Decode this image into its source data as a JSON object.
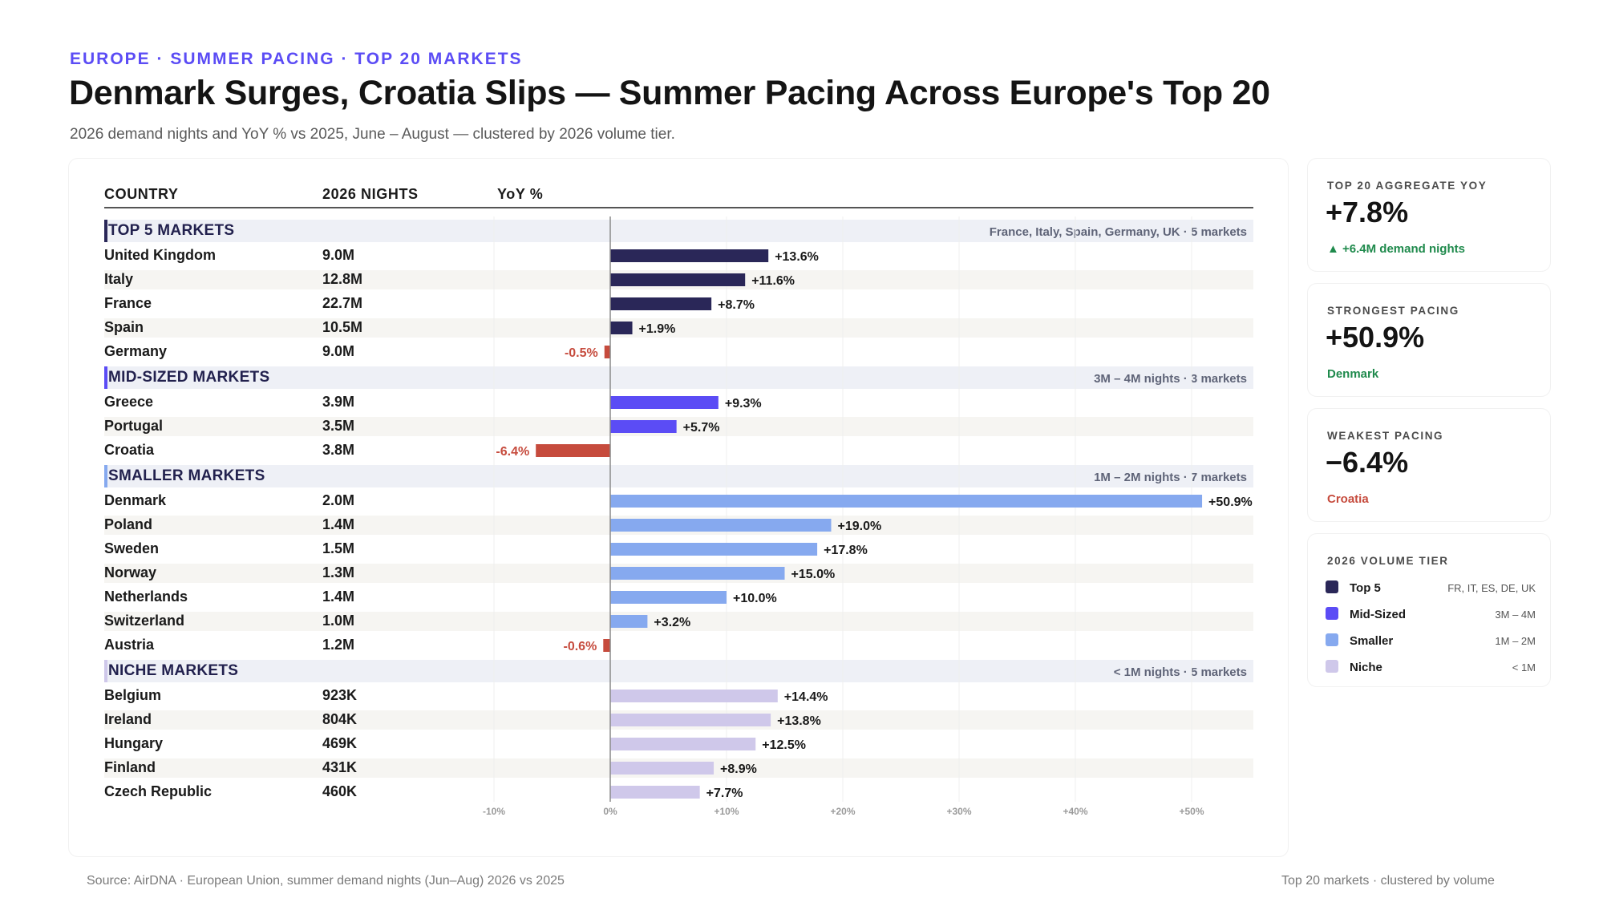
{
  "header": {
    "eyebrow": "EUROPE · SUMMER PACING · TOP 20 MARKETS",
    "title": "Denmark Surges, Croatia Slips — Summer Pacing Across Europe's Top 20",
    "subtitle": "2026 demand nights and YoY % vs 2025, June – August — clustered by 2026 volume tier."
  },
  "table": {
    "columns": [
      "COUNTRY",
      "2026 NIGHTS",
      "YoY %"
    ]
  },
  "colors": {
    "top5": "#2a2758",
    "mid": "#5b4cf5",
    "smaller": "#86a9ef",
    "niche": "#cfc8ea",
    "negative": "#c64b3d",
    "positive_text": "#1f8a4c"
  },
  "chart_data": {
    "type": "bar",
    "orientation": "horizontal",
    "xlabel": "YoY %",
    "xlim": [
      -10,
      55
    ],
    "xticks": [
      -10,
      0,
      10,
      20,
      30,
      40,
      50
    ],
    "xtick_labels": [
      "-10%",
      "0%",
      "+10%",
      "+20%",
      "+30%",
      "+40%",
      "+50%"
    ],
    "grid": true,
    "groups": [
      {
        "key": "top5",
        "name": "TOP 5 MARKETS",
        "note": "France, Italy, Spain, Germany, UK · 5 markets",
        "rows": [
          {
            "country": "United Kingdom",
            "nights": "9.0M",
            "yoy": 13.6,
            "label": "+13.6%"
          },
          {
            "country": "Italy",
            "nights": "12.8M",
            "yoy": 11.6,
            "label": "+11.6%"
          },
          {
            "country": "France",
            "nights": "22.7M",
            "yoy": 8.7,
            "label": "+8.7%"
          },
          {
            "country": "Spain",
            "nights": "10.5M",
            "yoy": 1.9,
            "label": "+1.9%"
          },
          {
            "country": "Germany",
            "nights": "9.0M",
            "yoy": -0.5,
            "label": "-0.5%"
          }
        ]
      },
      {
        "key": "mid",
        "name": "MID-SIZED MARKETS",
        "note": "3M – 4M nights · 3 markets",
        "rows": [
          {
            "country": "Greece",
            "nights": "3.9M",
            "yoy": 9.3,
            "label": "+9.3%"
          },
          {
            "country": "Portugal",
            "nights": "3.5M",
            "yoy": 5.7,
            "label": "+5.7%"
          },
          {
            "country": "Croatia",
            "nights": "3.8M",
            "yoy": -6.4,
            "label": "-6.4%"
          }
        ]
      },
      {
        "key": "smaller",
        "name": "SMALLER MARKETS",
        "note": "1M – 2M nights · 7 markets",
        "rows": [
          {
            "country": "Denmark",
            "nights": "2.0M",
            "yoy": 50.9,
            "label": "+50.9%"
          },
          {
            "country": "Poland",
            "nights": "1.4M",
            "yoy": 19.0,
            "label": "+19.0%"
          },
          {
            "country": "Sweden",
            "nights": "1.5M",
            "yoy": 17.8,
            "label": "+17.8%"
          },
          {
            "country": "Norway",
            "nights": "1.3M",
            "yoy": 15.0,
            "label": "+15.0%"
          },
          {
            "country": "Netherlands",
            "nights": "1.4M",
            "yoy": 10.0,
            "label": "+10.0%"
          },
          {
            "country": "Switzerland",
            "nights": "1.0M",
            "yoy": 3.2,
            "label": "+3.2%"
          },
          {
            "country": "Austria",
            "nights": "1.2M",
            "yoy": -0.6,
            "label": "-0.6%"
          }
        ]
      },
      {
        "key": "niche",
        "name": "NICHE MARKETS",
        "note": "< 1M nights · 5 markets",
        "rows": [
          {
            "country": "Belgium",
            "nights": "923K",
            "yoy": 14.4,
            "label": "+14.4%"
          },
          {
            "country": "Ireland",
            "nights": "804K",
            "yoy": 13.8,
            "label": "+13.8%"
          },
          {
            "country": "Hungary",
            "nights": "469K",
            "yoy": 12.5,
            "label": "+12.5%"
          },
          {
            "country": "Finland",
            "nights": "431K",
            "yoy": 8.9,
            "label": "+8.9%"
          },
          {
            "country": "Czech Republic",
            "nights": "460K",
            "yoy": 7.7,
            "label": "+7.7%"
          }
        ]
      }
    ]
  },
  "stats": {
    "aggregate": {
      "label": "TOP 20 AGGREGATE YOY",
      "value": "+7.8%",
      "sub": "▲ +6.4M demand nights"
    },
    "strongest": {
      "label": "STRONGEST PACING",
      "value": "+50.9%",
      "sub": "Denmark"
    },
    "weakest": {
      "label": "WEAKEST PACING",
      "value": "−6.4%",
      "sub": "Croatia"
    }
  },
  "legend": {
    "title": "2026 VOLUME TIER",
    "items": [
      {
        "key": "top5",
        "label": "Top 5",
        "range": "FR, IT, ES, DE, UK"
      },
      {
        "key": "mid",
        "label": "Mid-Sized",
        "range": "3M – 4M"
      },
      {
        "key": "smaller",
        "label": "Smaller",
        "range": "1M – 2M"
      },
      {
        "key": "niche",
        "label": "Niche",
        "range": "< 1M"
      }
    ]
  },
  "footer": {
    "source": "Source: AirDNA · European Union, summer demand nights (Jun–Aug) 2026 vs 2025",
    "note": "Top 20 markets · clustered by volume"
  }
}
